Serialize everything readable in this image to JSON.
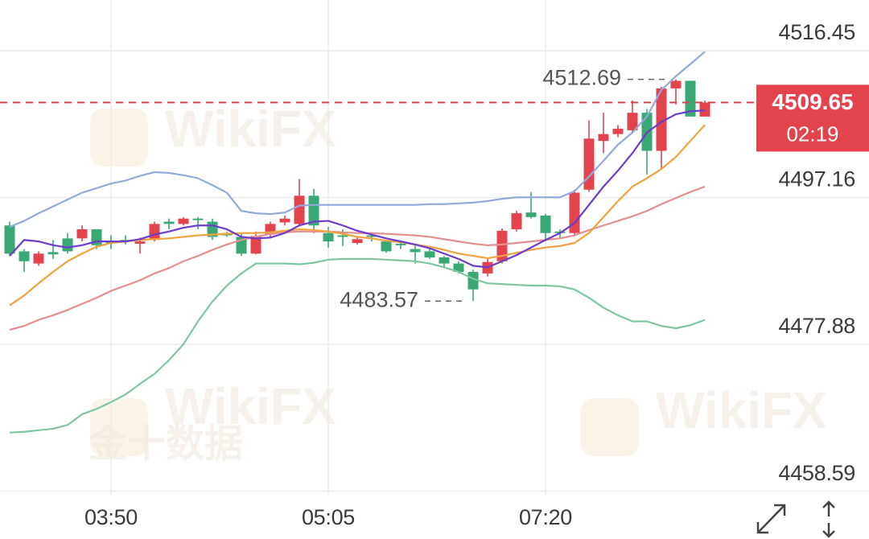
{
  "chart_data": {
    "type": "candlestick",
    "categories": [
      null,
      null,
      null,
      null,
      null,
      null,
      null,
      "03:50",
      null,
      null,
      null,
      null,
      null,
      null,
      null,
      null,
      null,
      null,
      null,
      null,
      null,
      null,
      "05:05",
      null,
      null,
      null,
      null,
      null,
      null,
      null,
      null,
      null,
      null,
      null,
      null,
      null,
      null,
      "07:20",
      null,
      null,
      null,
      null,
      null,
      null,
      null,
      null,
      null,
      null,
      null
    ],
    "open": [
      4493.5,
      4490.1,
      4488.5,
      4490.0,
      4491.8,
      4491.8,
      4493.0,
      4491.4,
      4491.6,
      4491.1,
      4491.6,
      4494.0,
      4493.7,
      4494.4,
      4494.0,
      4492.5,
      4492.0,
      4489.8,
      4492.3,
      4493.9,
      4493.7,
      4497.4,
      4492.5,
      4492.2,
      4491.2,
      4492.2,
      4491.4,
      4491.1,
      4490.4,
      4490.1,
      4489.3,
      4488.5,
      4487.4,
      4487.2,
      4488.8,
      4493.0,
      4495.2,
      4494.8,
      4492.7,
      4492.5,
      4498.2,
      4504.6,
      4505.5,
      4506.0,
      4508.3,
      4503.3,
      4511.5,
      4512.5,
      4507.8
    ],
    "high": [
      4494.0,
      4490.4,
      4490.1,
      4491.6,
      4492.5,
      4493.5,
      4493.0,
      4492.2,
      4492.2,
      4491.9,
      4494.0,
      4494.4,
      4494.6,
      4494.6,
      4494.4,
      4492.7,
      4492.5,
      4492.7,
      4494.0,
      4494.8,
      4499.6,
      4498.3,
      4493.3,
      4493.0,
      4491.9,
      4492.5,
      4491.6,
      4491.4,
      4490.9,
      4490.6,
      4489.5,
      4488.8,
      4487.7,
      4489.1,
      4493.1,
      4495.4,
      4497.9,
      4495.0,
      4493.0,
      4498.2,
      4507.3,
      4508.3,
      4506.7,
      4509.9,
      4508.8,
      4511.7,
      4512.69,
      4512.5,
      4509.9
    ],
    "low": [
      4489.5,
      4487.4,
      4488.2,
      4489.1,
      4489.8,
      4491.4,
      4490.4,
      4490.4,
      4491.0,
      4489.8,
      4491.4,
      4493.0,
      4493.5,
      4493.0,
      4491.6,
      4492.0,
      4489.5,
      4489.7,
      4491.8,
      4493.5,
      4493.5,
      4492.5,
      4490.6,
      4490.8,
      4491.0,
      4491.4,
      4489.9,
      4490.4,
      4488.5,
      4489.1,
      4488.0,
      4487.2,
      4483.57,
      4486.8,
      4488.5,
      4492.7,
      4494.4,
      4491.4,
      4491.8,
      4492.3,
      4497.9,
      4503.0,
      4505.1,
      4505.7,
      4500.2,
      4500.9,
      4509.4,
      4507.8,
      4507.8
    ],
    "close": [
      4489.8,
      4488.8,
      4489.8,
      4489.7,
      4490.1,
      4493.0,
      4490.9,
      4491.2,
      4491.4,
      4491.4,
      4493.7,
      4493.7,
      4494.4,
      4494.2,
      4492.0,
      4492.2,
      4489.8,
      4492.1,
      4493.7,
      4494.4,
      4497.4,
      4493.5,
      4491.4,
      4492.0,
      4491.7,
      4492.0,
      4490.1,
      4490.9,
      4490.0,
      4489.3,
      4488.5,
      4487.4,
      4485.1,
      4488.7,
      4492.8,
      4495.1,
      4494.6,
      4492.5,
      4492.5,
      4497.8,
      4504.9,
      4505.5,
      4506.2,
      4508.3,
      4503.3,
      4511.5,
      4512.5,
      4507.8,
      4509.65
    ],
    "up_color": "#e3434d",
    "down_color": "#3aa874",
    "lines": [
      {
        "color": "#93a9da",
        "values": [
          4493.3,
          4494.1,
          4495.1,
          4496.0,
          4496.9,
          4497.8,
          4498.4,
          4499.0,
          4499.4,
          4500.0,
          4500.5,
          4500.4,
          4500.1,
          4499.7,
          4498.8,
          4497.8,
          4495.4,
          4495.1,
          4495.0,
          4495.2,
          4496.1,
          4496.2,
          4496.2,
          4496.2,
          4496.2,
          4496.2,
          4496.2,
          4496.2,
          4496.2,
          4496.3,
          4496.3,
          4496.4,
          4496.5,
          4496.7,
          4497.0,
          4497.2,
          4497.2,
          4497.2,
          4497.2,
          4498.0,
          4499.9,
          4502.0,
          4504.1,
          4505.7,
          4507.8,
          4511.3,
          4513.1,
          4514.7,
          4516.3
        ]
      },
      {
        "color": "#7fc6a0",
        "values": [
          4466.3,
          4466.4,
          4466.6,
          4466.8,
          4467.3,
          4468.7,
          4469.4,
          4470.3,
          4471.3,
          4472.7,
          4474.0,
          4475.8,
          4477.9,
          4480.9,
          4483.5,
          4485.6,
          4487.2,
          4488.5,
          4488.5,
          4488.5,
          4488.4,
          4488.6,
          4489.0,
          4489.1,
          4489.1,
          4489.1,
          4489.0,
          4488.9,
          4488.8,
          4488.5,
          4488.0,
          4487.4,
          4486.5,
          4485.9,
          4485.8,
          4485.7,
          4485.6,
          4485.6,
          4485.5,
          4485.1,
          4484.0,
          4482.7,
          4481.7,
          4480.9,
          4480.9,
          4480.3,
          4480.0,
          4480.4,
          4481.1
        ]
      },
      {
        "color": "#e38f8f",
        "values": [
          4479.8,
          4480.3,
          4481.1,
          4481.7,
          4482.4,
          4483.2,
          4484.0,
          4484.9,
          4485.6,
          4486.3,
          4487.2,
          4487.9,
          4488.8,
          4489.5,
          4490.3,
          4491.0,
          4491.6,
          4492.0,
          4492.4,
          4492.6,
          4492.7,
          4492.7,
          4492.7,
          4492.6,
          4492.5,
          4492.5,
          4492.4,
          4492.3,
          4492.2,
          4492.0,
          4491.7,
          4491.4,
          4491.1,
          4490.9,
          4491.0,
          4491.2,
          4491.4,
          4491.6,
          4491.8,
          4492.2,
          4492.9,
          4493.5,
          4494.1,
          4494.7,
          4495.4,
          4496.3,
          4497.1,
          4497.9,
          4498.6
        ]
      },
      {
        "color": "#f0a23c",
        "values": [
          4483.0,
          4484.3,
          4485.9,
          4487.4,
          4488.8,
          4489.8,
          4490.7,
          4491.2,
          4491.4,
          4491.6,
          4491.7,
          4491.8,
          4492.0,
          4492.2,
          4492.3,
          4492.4,
          4492.5,
          4492.5,
          4492.6,
          4492.8,
          4493.0,
          4492.9,
          4492.7,
          4492.4,
          4492.0,
          4491.8,
          4491.5,
          4491.3,
          4491.0,
          4490.7,
          4490.3,
          4489.8,
          4489.5,
          4489.2,
          4489.5,
          4489.9,
          4490.3,
          4490.6,
          4490.8,
          4491.2,
          4492.5,
          4494.6,
          4496.7,
          4498.6,
          4499.7,
          4500.9,
          4502.5,
          4504.6,
          4506.7
        ]
      },
      {
        "color": "#6b3ccb",
        "values": [
          4489.5,
          4491.6,
          4491.4,
          4490.9,
          4490.6,
          4490.9,
          4491.4,
          4491.4,
          4491.4,
          4491.7,
          4492.3,
          4492.7,
          4493.2,
          4493.5,
          4493.5,
          4493.0,
          4492.0,
          4491.8,
          4491.9,
          4492.5,
          4493.5,
          4494.0,
          4494.1,
          4493.5,
          4492.8,
          4492.3,
          4491.8,
          4491.4,
          4491.0,
          4490.5,
          4489.8,
          4489.1,
          4488.2,
          4488.0,
          4488.8,
          4489.6,
          4490.6,
          4491.6,
          4492.5,
          4493.8,
          4496.2,
          4498.6,
          4500.7,
          4503.0,
          4505.7,
          4507.1,
          4508.1,
          4508.5,
          4508.6
        ]
      }
    ],
    "ylim": [
      4458.13,
      4523.11
    ],
    "yticks": [
      4516.45,
      4497.16,
      4477.88,
      4458.59
    ],
    "grid": true,
    "countdown": "02:19"
  },
  "watermarks": [
    "WikiFX",
    "WikiFX",
    "WikiFX",
    "金十数据"
  ]
}
